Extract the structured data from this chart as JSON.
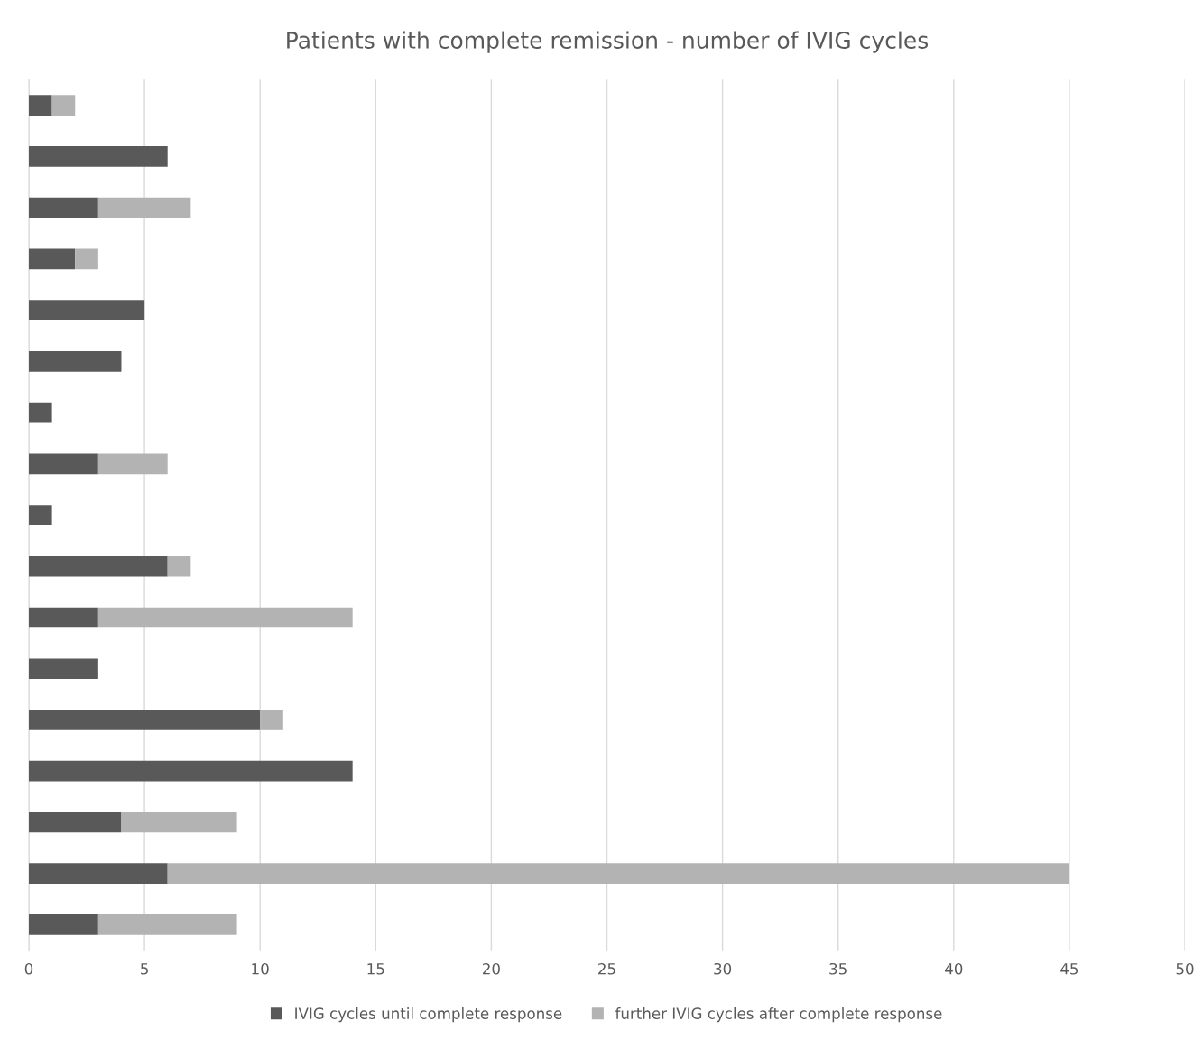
{
  "chart_data": {
    "type": "bar",
    "orientation": "horizontal",
    "stacked": true,
    "title": "Patients with complete remission - number of IVIG cycles",
    "categories": [
      null,
      null,
      null,
      null,
      null,
      null,
      null,
      null,
      null,
      null,
      null,
      null,
      null,
      null,
      null,
      null,
      null
    ],
    "series": [
      {
        "name": "IVIG cycles until complete response",
        "color": "#595959",
        "values": [
          1,
          6,
          3,
          2,
          5,
          4,
          1,
          3,
          1,
          6,
          3,
          3,
          10,
          14,
          4,
          6,
          3
        ]
      },
      {
        "name": "further IVIG cycles after complete response",
        "color": "#b3b3b3",
        "values": [
          1,
          0,
          4,
          1,
          0,
          0,
          0,
          3,
          0,
          1,
          11,
          0,
          1,
          0,
          5,
          39,
          6
        ]
      }
    ],
    "xlim": [
      0,
      50
    ],
    "xticks": [
      0,
      5,
      10,
      15,
      20,
      25,
      30,
      35,
      40,
      45,
      50
    ],
    "grid": "x",
    "legend": "bottom"
  }
}
